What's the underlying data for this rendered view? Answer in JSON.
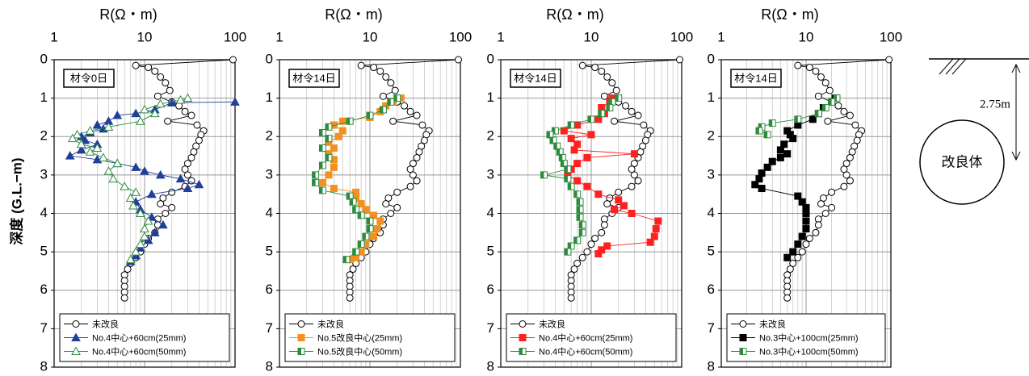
{
  "chart_data": [
    {
      "type": "line",
      "xlabel": "R(Ω・m)",
      "ylabel": "深度 (G.L.−m)",
      "annotation": "材令0日",
      "xscale": "log",
      "xlim": [
        1,
        100
      ],
      "xticks": [
        1,
        10,
        100
      ],
      "ylim": [
        0,
        8
      ],
      "yticks": [
        0,
        1,
        2,
        3,
        4,
        5,
        6,
        7,
        8
      ],
      "grid": true,
      "minor_grid": true,
      "legend": "lower left",
      "series": [
        {
          "name": "未改良",
          "color": "#000000",
          "marker": "circle",
          "fill": "none",
          "x": [
            95,
            8,
            11,
            13,
            15,
            17,
            19,
            14,
            20,
            24,
            28,
            33,
            18,
            38,
            45,
            42,
            40,
            37,
            35,
            33,
            30,
            28,
            30,
            33,
            28,
            20,
            16,
            15,
            20,
            17,
            14,
            14,
            13,
            11,
            10,
            9,
            8,
            7,
            6.5,
            6,
            6,
            6,
            6,
            6
          ],
          "values": [
            0,
            0.15,
            0.2,
            0.3,
            0.45,
            0.6,
            0.8,
            0.95,
            1.1,
            1.2,
            1.35,
            1.45,
            1.6,
            1.7,
            1.85,
            1.95,
            2.1,
            2.25,
            2.4,
            2.55,
            2.7,
            2.85,
            3,
            3.15,
            3.3,
            3.45,
            3.6,
            3.75,
            3.85,
            4,
            4.15,
            4.3,
            4.5,
            4.65,
            4.8,
            5,
            5.15,
            5.3,
            5.45,
            5.6,
            5.75,
            5.9,
            6.05,
            6.2
          ]
        },
        {
          "name": "No.4中心+60cm(25mm)",
          "color": "#1f3f99",
          "marker": "triangle",
          "fill": "solid",
          "x": [
            100,
            20,
            13,
            8,
            5,
            4,
            3,
            3.5,
            2.5,
            2,
            2.2,
            3,
            2,
            1.5,
            3,
            5,
            8,
            10,
            15,
            25,
            40,
            30,
            12,
            8,
            9,
            12,
            16,
            13,
            11,
            9,
            8,
            7
          ],
          "values": [
            1.1,
            1.12,
            1.3,
            1.4,
            1.45,
            1.6,
            1.7,
            1.8,
            1.9,
            2,
            2.1,
            2.2,
            2.35,
            2.5,
            2.6,
            2.7,
            2.8,
            2.9,
            3,
            3.1,
            3.25,
            3.35,
            3.5,
            3.7,
            3.9,
            4.1,
            4.3,
            4.5,
            4.7,
            4.9,
            5.1,
            5.25
          ]
        },
        {
          "name": "No.4中心+60cm(50mm)",
          "color": "#2e8b3e",
          "marker": "triangle",
          "fill": "none",
          "x": [
            30,
            25,
            15,
            10,
            13,
            9,
            4,
            2.5,
            1.8,
            1.6,
            2,
            3,
            2.5,
            3.5,
            5,
            4,
            4.5,
            6,
            8,
            7,
            7.5,
            9,
            11,
            10,
            10,
            9,
            8,
            7
          ],
          "values": [
            1,
            1.05,
            1.15,
            1.3,
            1.4,
            1.6,
            1.75,
            1.85,
            1.95,
            2.05,
            2.2,
            2.3,
            2.4,
            2.55,
            2.7,
            2.9,
            3.1,
            3.3,
            3.45,
            3.6,
            3.8,
            4,
            4.2,
            4.4,
            4.6,
            4.8,
            5,
            5.2
          ]
        }
      ]
    },
    {
      "type": "line",
      "xlabel": "R(Ω・m)",
      "annotation": "材令14日",
      "xscale": "log",
      "xlim": [
        1,
        100
      ],
      "xticks": [
        1,
        10,
        100
      ],
      "ylim": [
        0,
        8
      ],
      "yticks": [
        0,
        1,
        2,
        3,
        4,
        5,
        6,
        7,
        8
      ],
      "grid": true,
      "minor_grid": true,
      "legend": "lower left",
      "series": [
        {
          "name": "未改良",
          "color": "#000000",
          "marker": "circle",
          "fill": "none",
          "x": [
            95,
            8,
            11,
            13,
            15,
            17,
            19,
            14,
            20,
            24,
            28,
            33,
            18,
            38,
            45,
            42,
            40,
            37,
            35,
            33,
            30,
            28,
            30,
            33,
            28,
            20,
            16,
            15,
            20,
            17,
            14,
            14,
            13,
            11,
            10,
            9,
            8,
            7,
            6.5,
            6,
            6,
            6,
            6,
            6
          ],
          "values": [
            0,
            0.15,
            0.2,
            0.3,
            0.45,
            0.6,
            0.8,
            0.95,
            1.1,
            1.2,
            1.35,
            1.45,
            1.6,
            1.7,
            1.85,
            1.95,
            2.1,
            2.25,
            2.4,
            2.55,
            2.7,
            2.85,
            3,
            3.15,
            3.3,
            3.45,
            3.6,
            3.75,
            3.85,
            4,
            4.15,
            4.3,
            4.5,
            4.65,
            4.8,
            5,
            5.15,
            5.3,
            5.45,
            5.6,
            5.75,
            5.9,
            6.05,
            6.2
          ]
        },
        {
          "name": "No.5改良中心(25mm)",
          "color": "#f39020",
          "marker": "square",
          "fill": "solid",
          "x": [
            22,
            18,
            15,
            13,
            10,
            5,
            4,
            5,
            4.5,
            3.5,
            4,
            3.5,
            4,
            4,
            3.5,
            3,
            4,
            7,
            7,
            8,
            9,
            11,
            13,
            12,
            11,
            9,
            8,
            7,
            6
          ],
          "values": [
            1,
            1.1,
            1.2,
            1.35,
            1.5,
            1.6,
            1.7,
            1.85,
            2,
            2.15,
            2.3,
            2.45,
            2.6,
            2.8,
            3,
            3.2,
            3.35,
            3.45,
            3.6,
            3.75,
            3.9,
            4.05,
            4.2,
            4.4,
            4.6,
            4.8,
            5,
            5.15,
            5.2
          ]
        },
        {
          "name": "No.5改良中心(50mm)",
          "color": "#2e8b3e",
          "marker": "square",
          "fill": "half",
          "x": [
            20,
            17,
            14,
            10,
            6,
            3.5,
            3,
            3.5,
            3,
            3.5,
            3,
            2.5,
            2.5,
            3,
            6,
            6.5,
            7,
            8,
            10,
            10,
            9,
            8,
            7,
            5.5
          ],
          "values": [
            1,
            1.1,
            1.3,
            1.45,
            1.6,
            1.75,
            1.9,
            2.05,
            2.3,
            2.55,
            2.75,
            3,
            3.2,
            3.4,
            3.55,
            3.7,
            3.9,
            4.05,
            4.2,
            4.4,
            4.6,
            4.8,
            5,
            5.2
          ]
        }
      ]
    },
    {
      "type": "line",
      "xlabel": "R(Ω・m)",
      "annotation": "材令14日",
      "xscale": "log",
      "xlim": [
        1,
        100
      ],
      "xticks": [
        1,
        10,
        100
      ],
      "ylim": [
        0,
        8
      ],
      "yticks": [
        0,
        1,
        2,
        3,
        4,
        5,
        6,
        7,
        8
      ],
      "grid": true,
      "minor_grid": true,
      "legend": "lower left",
      "series": [
        {
          "name": "未改良",
          "color": "#000000",
          "marker": "circle",
          "fill": "none",
          "x": [
            95,
            8,
            11,
            13,
            15,
            17,
            19,
            14,
            20,
            24,
            28,
            33,
            18,
            38,
            45,
            42,
            40,
            37,
            35,
            33,
            30,
            28,
            30,
            33,
            28,
            20,
            16,
            15,
            20,
            17,
            14,
            14,
            13,
            11,
            10,
            9,
            8,
            7,
            6.5,
            6,
            6,
            6,
            6,
            6
          ],
          "values": [
            0,
            0.15,
            0.2,
            0.3,
            0.45,
            0.6,
            0.8,
            0.95,
            1.1,
            1.2,
            1.35,
            1.45,
            1.6,
            1.7,
            1.85,
            1.95,
            2.1,
            2.25,
            2.4,
            2.55,
            2.7,
            2.85,
            3,
            3.15,
            3.3,
            3.45,
            3.6,
            3.75,
            3.85,
            4,
            4.15,
            4.3,
            4.5,
            4.65,
            4.8,
            5,
            5.15,
            5.3,
            5.45,
            5.6,
            5.75,
            5.9,
            6.05,
            6.2
          ]
        },
        {
          "name": "No.4中心+60cm(25mm)",
          "color": "#ff2020",
          "marker": "square",
          "fill": "solid",
          "x": [
            17,
            16,
            13,
            14,
            12,
            7,
            5,
            10,
            6,
            7,
            6.5,
            30,
            9,
            7,
            6,
            5.5,
            7,
            9,
            12,
            20,
            23,
            18,
            28,
            55,
            52,
            50,
            45,
            15,
            13,
            12
          ],
          "values": [
            1,
            1.1,
            1.25,
            1.4,
            1.55,
            1.7,
            1.85,
            1.95,
            2.05,
            2.2,
            2.35,
            2.45,
            2.55,
            2.7,
            2.85,
            3,
            3.15,
            3.3,
            3.5,
            3.65,
            3.8,
            3.9,
            4,
            4.2,
            4.4,
            4.6,
            4.75,
            4.85,
            4.95,
            5.05
          ]
        },
        {
          "name": "No.4中心+60cm(50mm)",
          "color": "#2e8b3e",
          "marker": "square",
          "fill": "half",
          "x": [
            20,
            17,
            16,
            13,
            10,
            6,
            4,
            3.5,
            3.8,
            4.2,
            4.5,
            4.8,
            5,
            5.5,
            3,
            5.5,
            6,
            7,
            7.5,
            7.5,
            7.5,
            8,
            8,
            7,
            6,
            5.5
          ],
          "values": [
            1,
            1.1,
            1.25,
            1.4,
            1.55,
            1.7,
            1.85,
            1.95,
            2.1,
            2.25,
            2.4,
            2.55,
            2.7,
            2.85,
            3,
            3.1,
            3.3,
            3.5,
            3.7,
            3.9,
            4.1,
            4.3,
            4.5,
            4.7,
            4.85,
            5
          ]
        }
      ]
    },
    {
      "type": "line",
      "xlabel": "R(Ω・m)",
      "annotation": "材令14日",
      "xscale": "log",
      "xlim": [
        1,
        100
      ],
      "xticks": [
        1,
        10,
        100
      ],
      "ylim": [
        0,
        8
      ],
      "yticks": [
        0,
        1,
        2,
        3,
        4,
        5,
        6,
        7,
        8
      ],
      "grid": true,
      "minor_grid": true,
      "legend": "lower left",
      "series": [
        {
          "name": "未改良",
          "color": "#000000",
          "marker": "circle",
          "fill": "none",
          "x": [
            95,
            8,
            11,
            13,
            15,
            17,
            19,
            14,
            20,
            24,
            28,
            33,
            18,
            38,
            45,
            42,
            40,
            37,
            35,
            33,
            30,
            28,
            30,
            33,
            28,
            20,
            16,
            15,
            20,
            17,
            14,
            14,
            13,
            11,
            10,
            9,
            8,
            7,
            6.5,
            6,
            6,
            6,
            6,
            6
          ],
          "values": [
            0,
            0.15,
            0.2,
            0.3,
            0.45,
            0.6,
            0.8,
            0.95,
            1.1,
            1.2,
            1.35,
            1.45,
            1.6,
            1.7,
            1.85,
            1.95,
            2.1,
            2.25,
            2.4,
            2.55,
            2.7,
            2.85,
            3,
            3.15,
            3.3,
            3.45,
            3.6,
            3.75,
            3.85,
            4,
            4.15,
            4.3,
            4.5,
            4.65,
            4.8,
            5,
            5.15,
            5.3,
            5.45,
            5.6,
            5.75,
            5.9,
            6.05,
            6.2
          ]
        },
        {
          "name": "No.3中心+100cm(25mm)",
          "color": "#000000",
          "marker": "square",
          "fill": "solid",
          "x": [
            22,
            20,
            16,
            14,
            12,
            8,
            6,
            6.5,
            7,
            5.5,
            5,
            6,
            5,
            4,
            3.5,
            3,
            2.8,
            2.5,
            3,
            8,
            9,
            10,
            10,
            10,
            10,
            9,
            8,
            7,
            6
          ],
          "values": [
            1,
            1.1,
            1.25,
            1.4,
            1.55,
            1.7,
            1.85,
            1.95,
            2.05,
            2.2,
            2.35,
            2.45,
            2.55,
            2.65,
            2.8,
            2.95,
            3.1,
            3.25,
            3.35,
            3.55,
            3.7,
            3.85,
            4,
            4.2,
            4.4,
            4.6,
            4.8,
            5,
            5.15
          ]
        },
        {
          "name": "No.3中心+100cm(50mm)",
          "color": "#2e8b3e",
          "marker": "square",
          "fill": "half",
          "x": [
            23,
            20,
            17,
            14,
            8,
            4,
            3,
            2.8,
            3.5
          ],
          "values": [
            1,
            1.1,
            1.25,
            1.4,
            1.55,
            1.65,
            1.75,
            1.85,
            1.95
          ]
        }
      ]
    }
  ],
  "diagram": {
    "dimension": "2.75m",
    "label": "改良体"
  }
}
